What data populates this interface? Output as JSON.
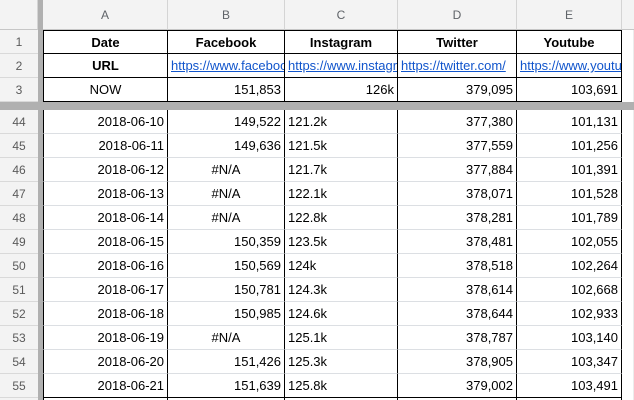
{
  "colors": {
    "link_blue": "#1155cc",
    "table_border_black": "#000000",
    "header_bg_grey": "#f3f3f3",
    "frozen_divider_grey": "#b0b0b0",
    "gridline_grey": "#dcdfe3"
  },
  "sheet": {
    "column_letters": [
      "A",
      "B",
      "C",
      "D",
      "E"
    ],
    "frozen": {
      "header": {
        "num": "1",
        "date": "Date",
        "facebook": "Facebook",
        "instagram": "Instagram",
        "twitter": "Twitter",
        "youtube": "Youtube"
      },
      "url": {
        "num": "2",
        "label": "URL",
        "facebook": "https://www.facebook.com/",
        "instagram": "https://www.instagram.com/",
        "twitter": "https://twitter.com/",
        "youtube": "https://www.youtube.com/"
      },
      "now": {
        "num": "3",
        "label": "NOW",
        "facebook": "151,853",
        "instagram": "126k",
        "twitter": "379,095",
        "youtube": "103,691"
      }
    },
    "rows": [
      {
        "num": "44",
        "date": "2018-06-10",
        "facebook": "149,522",
        "instagram": "121.2k",
        "twitter": "377,380",
        "youtube": "101,131"
      },
      {
        "num": "45",
        "date": "2018-06-11",
        "facebook": "149,636",
        "instagram": "121.5k",
        "twitter": "377,559",
        "youtube": "101,256"
      },
      {
        "num": "46",
        "date": "2018-06-12",
        "facebook": "#N/A",
        "instagram": "121.7k",
        "twitter": "377,884",
        "youtube": "101,391"
      },
      {
        "num": "47",
        "date": "2018-06-13",
        "facebook": "#N/A",
        "instagram": "122.1k",
        "twitter": "378,071",
        "youtube": "101,528"
      },
      {
        "num": "48",
        "date": "2018-06-14",
        "facebook": "#N/A",
        "instagram": "122.8k",
        "twitter": "378,281",
        "youtube": "101,789"
      },
      {
        "num": "49",
        "date": "2018-06-15",
        "facebook": "150,359",
        "instagram": "123.5k",
        "twitter": "378,481",
        "youtube": "102,055"
      },
      {
        "num": "50",
        "date": "2018-06-16",
        "facebook": "150,569",
        "instagram": "124k",
        "twitter": "378,518",
        "youtube": "102,264"
      },
      {
        "num": "51",
        "date": "2018-06-17",
        "facebook": "150,781",
        "instagram": "124.3k",
        "twitter": "378,614",
        "youtube": "102,668"
      },
      {
        "num": "52",
        "date": "2018-06-18",
        "facebook": "150,985",
        "instagram": "124.6k",
        "twitter": "378,644",
        "youtube": "102,933"
      },
      {
        "num": "53",
        "date": "2018-06-19",
        "facebook": "#N/A",
        "instagram": "125.1k",
        "twitter": "378,787",
        "youtube": "103,140"
      },
      {
        "num": "54",
        "date": "2018-06-20",
        "facebook": "151,426",
        "instagram": "125.3k",
        "twitter": "378,905",
        "youtube": "103,347"
      },
      {
        "num": "55",
        "date": "2018-06-21",
        "facebook": "151,639",
        "instagram": "125.8k",
        "twitter": "379,002",
        "youtube": "103,491"
      }
    ]
  }
}
